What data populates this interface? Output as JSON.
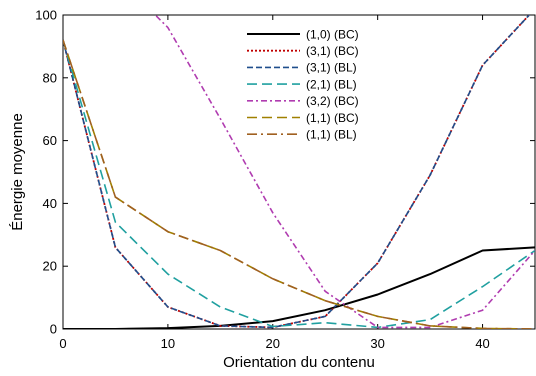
{
  "chart_data": {
    "type": "line",
    "title": "",
    "xlabel": "Orientation du contenu",
    "ylabel": "Énergie moyenne",
    "xlim": [
      0,
      45
    ],
    "ylim": [
      0,
      100
    ],
    "x_ticks": [
      0,
      10,
      20,
      30,
      40
    ],
    "y_ticks": [
      0,
      20,
      40,
      60,
      80,
      100
    ],
    "x_tick_labels": [
      "0",
      "10",
      "20",
      "30",
      "40"
    ],
    "y_tick_labels": [
      "0",
      "20",
      "40",
      "60",
      "80",
      "100"
    ],
    "grid": false,
    "legend_position": "top-center",
    "series": [
      {
        "name": "(1,0) (BC)",
        "color": "#000000",
        "dash": "solid",
        "x": [
          0,
          5,
          10,
          15,
          20,
          25,
          30,
          35,
          40,
          45
        ],
        "y": [
          0,
          0,
          0.3,
          1,
          2.5,
          6,
          11,
          17.5,
          25,
          26
        ]
      },
      {
        "name": "(3,1) (BC)",
        "color": "#c00000",
        "dash": "dot",
        "x": [
          0,
          5,
          10,
          15,
          20,
          25,
          30,
          35,
          40,
          45
        ],
        "y": [
          92,
          26,
          7,
          1,
          0.5,
          4,
          21,
          49,
          84,
          102
        ]
      },
      {
        "name": "(3,1) (BL)",
        "color": "#1f4e8c",
        "dash": "dash",
        "x": [
          0,
          5,
          10,
          15,
          20,
          25,
          30,
          35,
          40,
          45
        ],
        "y": [
          92,
          26,
          7,
          1,
          0.5,
          4,
          21,
          49,
          84,
          102
        ]
      },
      {
        "name": "(2,1) (BL)",
        "color": "#20a0a0",
        "dash": "longdash",
        "x": [
          0,
          5,
          10,
          15,
          20,
          25,
          30,
          35,
          40,
          45
        ],
        "y": [
          92,
          34,
          17.5,
          7,
          0.8,
          2,
          0.5,
          3,
          13.5,
          25
        ]
      },
      {
        "name": "(3,2) (BC)",
        "color": "#b03cb0",
        "dash": "dashdot",
        "x": [
          7,
          10,
          15,
          20,
          25,
          30,
          35,
          40,
          45
        ],
        "y": [
          106,
          96,
          67,
          37,
          12,
          0.5,
          0.5,
          6,
          25
        ]
      },
      {
        "name": "(1,1) (BC)",
        "color": "#a08000",
        "dash": "longdash",
        "x": [
          0,
          5,
          10,
          15,
          20,
          25,
          30,
          35,
          40,
          45
        ],
        "y": [
          92,
          42,
          31,
          25,
          16,
          9,
          4,
          1,
          0.2,
          0
        ]
      },
      {
        "name": "(1,1) (BL)",
        "color": "#a06020",
        "dash": "longdashdot",
        "x": [
          0,
          5,
          10,
          15,
          20,
          25,
          30,
          35,
          40,
          45
        ],
        "y": [
          92,
          42,
          31,
          25,
          16,
          9,
          4,
          1,
          0.2,
          0
        ]
      }
    ]
  }
}
